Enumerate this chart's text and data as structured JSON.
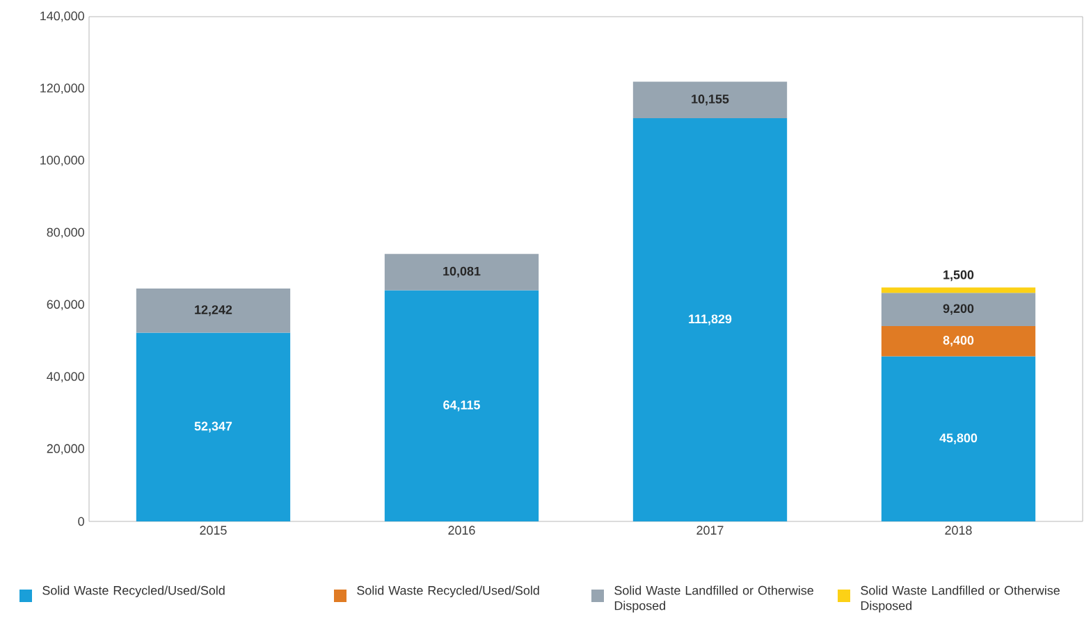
{
  "chart_data": {
    "type": "bar",
    "stacked": true,
    "legend": "bottom",
    "grid": false,
    "categories": [
      "2015",
      "2016",
      "2017",
      "2018"
    ],
    "series": [
      {
        "name": "Solid Waste Recycled/Used/Sold",
        "color": "#1a9fd9",
        "values": [
          52347,
          64115,
          111829,
          45800
        ],
        "value_labels": [
          "52,347",
          "64,115",
          "111,829",
          "45,800"
        ]
      },
      {
        "name": "Solid Waste Recycled/Used/Sold",
        "color": "#e07b24",
        "values": [
          null,
          null,
          null,
          8400
        ],
        "value_labels": [
          null,
          null,
          null,
          "8,400"
        ]
      },
      {
        "name": "Solid Waste Landfilled or Otherwise Disposed",
        "color": "#97a5b1",
        "values": [
          12242,
          10081,
          10155,
          9200
        ],
        "value_labels": [
          "12,242",
          "10,081",
          "10,155",
          "9,200"
        ]
      },
      {
        "name": "Solid Waste Landfilled or Otherwise Disposed",
        "color": "#fcd116",
        "values": [
          null,
          null,
          null,
          1500
        ],
        "value_labels": [
          null,
          null,
          null,
          "1,500"
        ]
      }
    ],
    "ylim": [
      0,
      140000
    ],
    "yticks": [
      {
        "value": 0,
        "label": "0"
      },
      {
        "value": 20000,
        "label": "20,000"
      },
      {
        "value": 40000,
        "label": "40,000"
      },
      {
        "value": 60000,
        "label": "60,000"
      },
      {
        "value": 80000,
        "label": "80,000"
      },
      {
        "value": 100000,
        "label": "100,000"
      },
      {
        "value": 120000,
        "label": "120,000"
      },
      {
        "value": 140000,
        "label": "140,000"
      }
    ]
  }
}
